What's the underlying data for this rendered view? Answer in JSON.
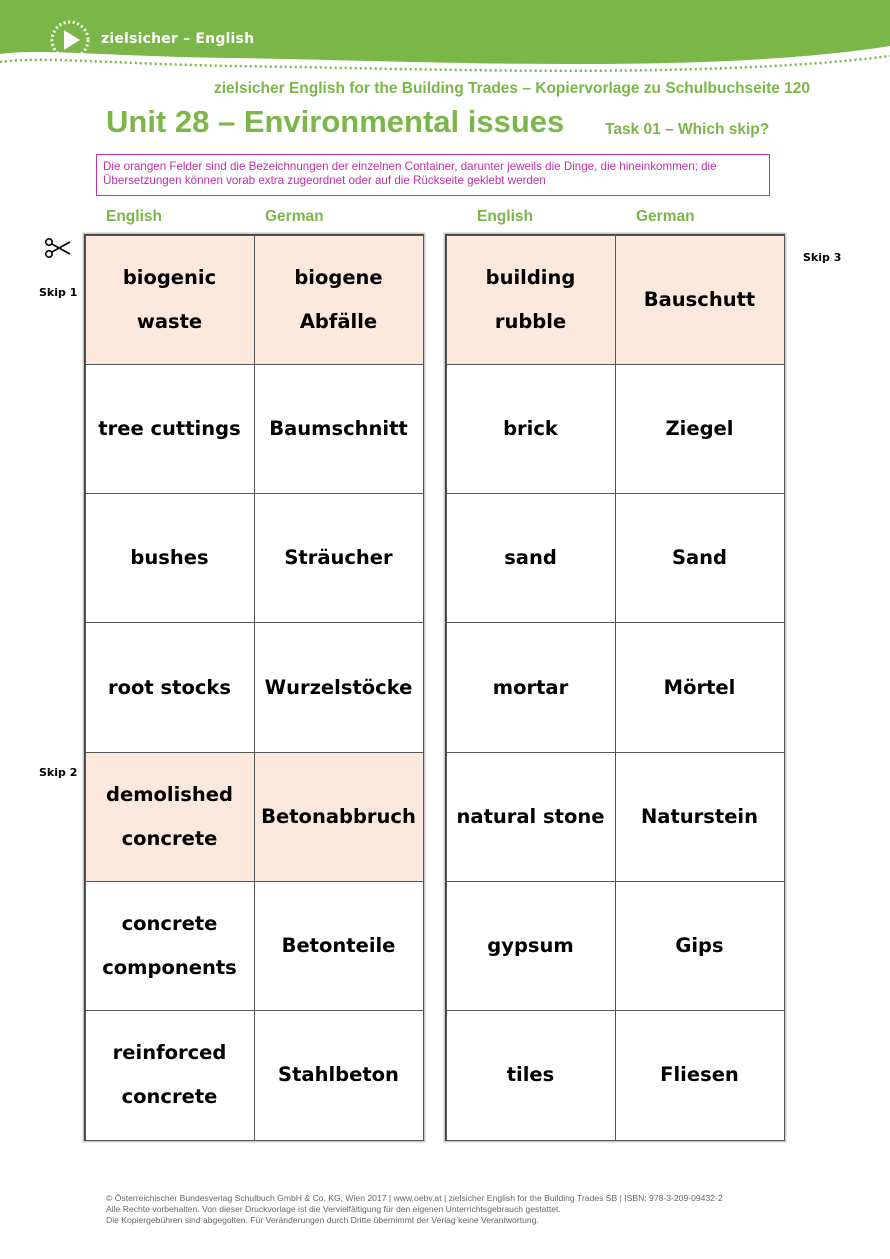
{
  "header": {
    "logo_text": "zielsicher – English",
    "subtitle": "zielsicher English for the Building Trades – Kopiervorlage zu Schulbuchseite 120",
    "unit_title": "Unit 28 – Environmental issues",
    "task_title": "Task 01 – Which skip?"
  },
  "colors": {
    "green": "#7ab648",
    "magenta": "#c22fa6",
    "orange_cell": "#fbe8dc"
  },
  "instruction": "Die orangen Felder sind die Bezeichnungen der einzelnen Container, darunter jeweils die Dinge, die hineinkommen; die Übersetzungen können vorab extra zugeordnet oder auf die Rückseite geklebt werden",
  "columns": {
    "left_english": "English",
    "left_german": "German",
    "right_english": "English",
    "right_german": "German"
  },
  "skips": {
    "skip1": "Skip 1",
    "skip2": "Skip 2",
    "skip3": "Skip 3"
  },
  "left_table": [
    {
      "en": "biogenic waste",
      "de": "biogene Abfälle",
      "highlight": true
    },
    {
      "en": "tree cuttings",
      "de": "Baumschnitt",
      "highlight": false
    },
    {
      "en": "bushes",
      "de": "Sträucher",
      "highlight": false
    },
    {
      "en": "root stocks",
      "de": "Wurzelstöcke",
      "highlight": false
    },
    {
      "en": "demolished concrete",
      "de": "Betonabbruch",
      "highlight": true
    },
    {
      "en": "concrete components",
      "de": "Betonteile",
      "highlight": false
    },
    {
      "en": "reinforced concrete",
      "de": "Stahlbeton",
      "highlight": false
    }
  ],
  "right_table": [
    {
      "en": "building rubble",
      "de": "Bauschutt",
      "highlight": true
    },
    {
      "en": "brick",
      "de": "Ziegel",
      "highlight": false
    },
    {
      "en": "sand",
      "de": "Sand",
      "highlight": false
    },
    {
      "en": "mortar",
      "de": "Mörtel",
      "highlight": false
    },
    {
      "en": "natural stone",
      "de": "Naturstein",
      "highlight": false
    },
    {
      "en": "gypsum",
      "de": "Gips",
      "highlight": false
    },
    {
      "en": "tiles",
      "de": "Fliesen",
      "highlight": false
    }
  ],
  "footer": {
    "line1": "© Österreichischer Bundesverlag Schulbuch GmbH & Co. KG, Wien 2017 | www.oebv.at | zielsicher English for the Building Trades SB | ISBN: 978-3-209-09432-2",
    "line2": "Alle Rechte vorbehalten. Von dieser Druckvorlage ist die Vervielfältigung für den eigenen Unterrichtsgebrauch gestattet.",
    "line3": "Die Kopiergebühren sind abgegolten. Für Veränderungen durch Dritte übernimmt der Verlag keine Verantwortung."
  }
}
